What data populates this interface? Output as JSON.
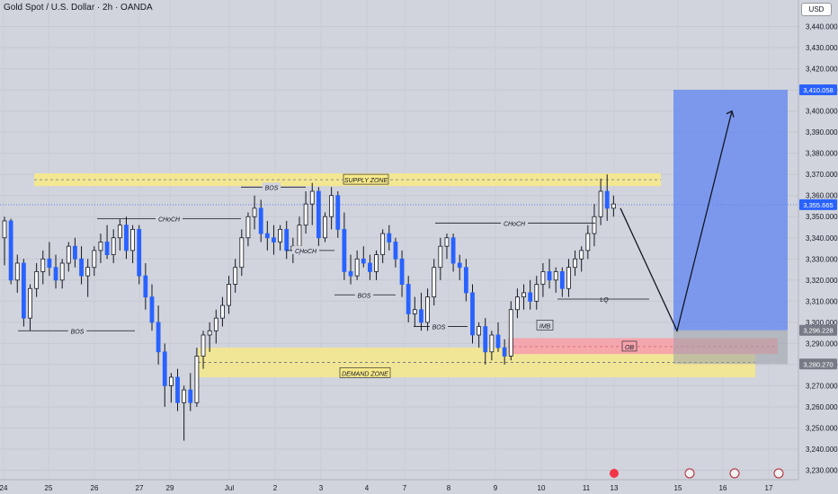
{
  "header": {
    "symbol_title": "Gold Spot / U.S. Dollar · 2h · OANDA",
    "currency": "USD"
  },
  "chart_data": {
    "type": "candlestick",
    "title": "Gold Spot / U.S. Dollar · 2h · OANDA",
    "ylim": [
      3223,
      3450
    ],
    "y_ticks": [
      3230,
      3240,
      3250,
      3260,
      3270,
      3280,
      3290,
      3300,
      3310,
      3320,
      3330,
      3340,
      3350,
      3360,
      3370,
      3380,
      3390,
      3400,
      3410,
      3420,
      3430,
      3440
    ],
    "x_tick_labels": [
      "24",
      "25",
      "26",
      "27",
      "29",
      "Jul",
      "2",
      "3",
      "4",
      "7",
      "8",
      "9",
      "10",
      "11",
      "13",
      "15",
      "16",
      "17"
    ],
    "price_badges": [
      {
        "value": "3,410.058",
        "color": "#2962ff"
      },
      {
        "value": "3,355.665",
        "color": "#2962ff"
      },
      {
        "value": "3,296.228",
        "color": "#787b86"
      },
      {
        "value": "3,280.270",
        "color": "#787b86"
      }
    ],
    "zones": [
      {
        "label": "SUPPLY ZONE",
        "from": 3364.5,
        "to": 3370.5,
        "color": "#f7e98a"
      },
      {
        "label": "DEMAND ZONE",
        "from": 3274,
        "to": 3288,
        "color": "#f7e98a"
      },
      {
        "label": "OB",
        "from": 3285,
        "to": 3292.5,
        "color": "#f5a3ab"
      }
    ],
    "labels": [
      "BOS",
      "CHoCH",
      "BOS",
      "CHoCH",
      "BOS",
      "BOS",
      "CHoCH",
      "LQ",
      "IMB"
    ],
    "projection": {
      "start": 3354,
      "low": 3296,
      "target": 3400
    },
    "candles": [
      [
        3340,
        3350,
        3327,
        3348
      ],
      [
        3348,
        3349,
        3318,
        3320
      ],
      [
        3320,
        3332,
        3314,
        3328
      ],
      [
        3328,
        3330,
        3298,
        3302
      ],
      [
        3302,
        3318,
        3296,
        3316
      ],
      [
        3316,
        3328,
        3312,
        3324
      ],
      [
        3324,
        3334,
        3318,
        3330
      ],
      [
        3330,
        3338,
        3322,
        3326
      ],
      [
        3326,
        3332,
        3316,
        3320
      ],
      [
        3320,
        3330,
        3316,
        3328
      ],
      [
        3328,
        3338,
        3324,
        3336
      ],
      [
        3336,
        3340,
        3326,
        3330
      ],
      [
        3330,
        3336,
        3318,
        3322
      ],
      [
        3322,
        3330,
        3312,
        3326
      ],
      [
        3326,
        3336,
        3322,
        3334
      ],
      [
        3334,
        3342,
        3328,
        3338
      ],
      [
        3338,
        3346,
        3330,
        3332
      ],
      [
        3332,
        3344,
        3328,
        3340
      ],
      [
        3340,
        3349,
        3334,
        3346
      ],
      [
        3346,
        3350,
        3330,
        3334
      ],
      [
        3334,
        3346,
        3328,
        3344
      ],
      [
        3344,
        3346,
        3318,
        3322
      ],
      [
        3322,
        3328,
        3306,
        3312
      ],
      [
        3312,
        3318,
        3296,
        3300
      ],
      [
        3300,
        3308,
        3280,
        3286
      ],
      [
        3286,
        3290,
        3260,
        3270
      ],
      [
        3270,
        3276,
        3262,
        3274
      ],
      [
        3274,
        3278,
        3258,
        3262
      ],
      [
        3262,
        3270,
        3244,
        3268
      ],
      [
        3268,
        3276,
        3258,
        3262
      ],
      [
        3262,
        3288,
        3260,
        3284
      ],
      [
        3284,
        3296,
        3278,
        3294
      ],
      [
        3294,
        3300,
        3286,
        3296
      ],
      [
        3296,
        3306,
        3290,
        3302
      ],
      [
        3302,
        3312,
        3298,
        3308
      ],
      [
        3308,
        3322,
        3304,
        3318
      ],
      [
        3318,
        3330,
        3314,
        3326
      ],
      [
        3326,
        3344,
        3322,
        3340
      ],
      [
        3340,
        3352,
        3336,
        3350
      ],
      [
        3350,
        3360,
        3344,
        3354
      ],
      [
        3354,
        3358,
        3338,
        3342
      ],
      [
        3342,
        3348,
        3334,
        3340
      ],
      [
        3340,
        3346,
        3332,
        3338
      ],
      [
        3338,
        3346,
        3334,
        3344
      ],
      [
        3344,
        3348,
        3330,
        3334
      ],
      [
        3334,
        3340,
        3328,
        3336
      ],
      [
        3336,
        3350,
        3332,
        3346
      ],
      [
        3346,
        3362,
        3342,
        3356
      ],
      [
        3356,
        3366,
        3346,
        3362
      ],
      [
        3362,
        3364,
        3334,
        3340
      ],
      [
        3340,
        3352,
        3338,
        3350
      ],
      [
        3350,
        3364,
        3344,
        3360
      ],
      [
        3360,
        3362,
        3340,
        3344
      ],
      [
        3344,
        3352,
        3320,
        3324
      ],
      [
        3324,
        3332,
        3318,
        3322
      ],
      [
        3322,
        3334,
        3320,
        3330
      ],
      [
        3330,
        3336,
        3326,
        3328
      ],
      [
        3328,
        3332,
        3320,
        3324
      ],
      [
        3324,
        3334,
        3320,
        3332
      ],
      [
        3332,
        3344,
        3328,
        3342
      ],
      [
        3342,
        3346,
        3334,
        3338
      ],
      [
        3338,
        3340,
        3326,
        3330
      ],
      [
        3330,
        3334,
        3312,
        3318
      ],
      [
        3318,
        3322,
        3300,
        3304
      ],
      [
        3304,
        3312,
        3298,
        3306
      ],
      [
        3306,
        3314,
        3296,
        3300
      ],
      [
        3300,
        3316,
        3296,
        3312
      ],
      [
        3312,
        3330,
        3308,
        3326
      ],
      [
        3326,
        3340,
        3320,
        3336
      ],
      [
        3336,
        3342,
        3330,
        3340
      ],
      [
        3340,
        3342,
        3324,
        3328
      ],
      [
        3328,
        3332,
        3320,
        3326
      ],
      [
        3326,
        3330,
        3310,
        3314
      ],
      [
        3314,
        3318,
        3290,
        3294
      ],
      [
        3294,
        3300,
        3288,
        3298
      ],
      [
        3298,
        3302,
        3280,
        3286
      ],
      [
        3286,
        3296,
        3282,
        3294
      ],
      [
        3294,
        3300,
        3286,
        3288
      ],
      [
        3288,
        3292,
        3280,
        3284
      ],
      [
        3284,
        3310,
        3282,
        3306
      ],
      [
        3306,
        3316,
        3302,
        3312
      ],
      [
        3312,
        3318,
        3306,
        3314
      ],
      [
        3314,
        3320,
        3306,
        3310
      ],
      [
        3310,
        3322,
        3306,
        3318
      ],
      [
        3318,
        3328,
        3312,
        3324
      ],
      [
        3324,
        3330,
        3316,
        3320
      ],
      [
        3320,
        3326,
        3314,
        3324
      ],
      [
        3324,
        3326,
        3312,
        3316
      ],
      [
        3316,
        3330,
        3312,
        3326
      ],
      [
        3326,
        3334,
        3322,
        3330
      ],
      [
        3330,
        3336,
        3324,
        3334
      ],
      [
        3334,
        3346,
        3330,
        3342
      ],
      [
        3342,
        3356,
        3336,
        3350
      ],
      [
        3350,
        3368,
        3346,
        3362
      ],
      [
        3362,
        3370,
        3348,
        3354
      ],
      [
        3354,
        3360,
        3350,
        3356
      ]
    ]
  }
}
